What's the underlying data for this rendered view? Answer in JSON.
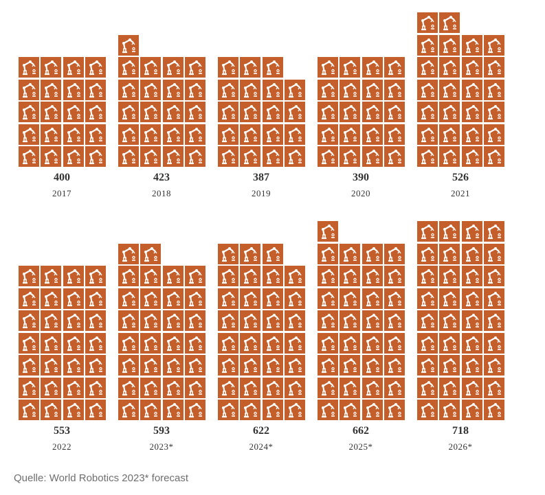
{
  "chart_data": {
    "type": "pictogram",
    "title": "",
    "unit_per_icon": 20,
    "icon": "industrial-robot-arm-icon",
    "color": "#c45f2b",
    "categories": [
      "2017",
      "2018",
      "2019",
      "2020",
      "2021",
      "2022",
      "2023*",
      "2024*",
      "2025*",
      "2026*"
    ],
    "values": [
      400,
      423,
      387,
      390,
      526,
      553,
      593,
      622,
      662,
      718
    ],
    "icon_counts": [
      20,
      21,
      19,
      20,
      26,
      28,
      30,
      31,
      33,
      36
    ],
    "value_labels": [
      "400",
      "423",
      "387",
      "390",
      "526",
      "553",
      "593",
      "622",
      "662",
      "718"
    ]
  },
  "source": "Quelle: World Robotics 2023* forecast"
}
